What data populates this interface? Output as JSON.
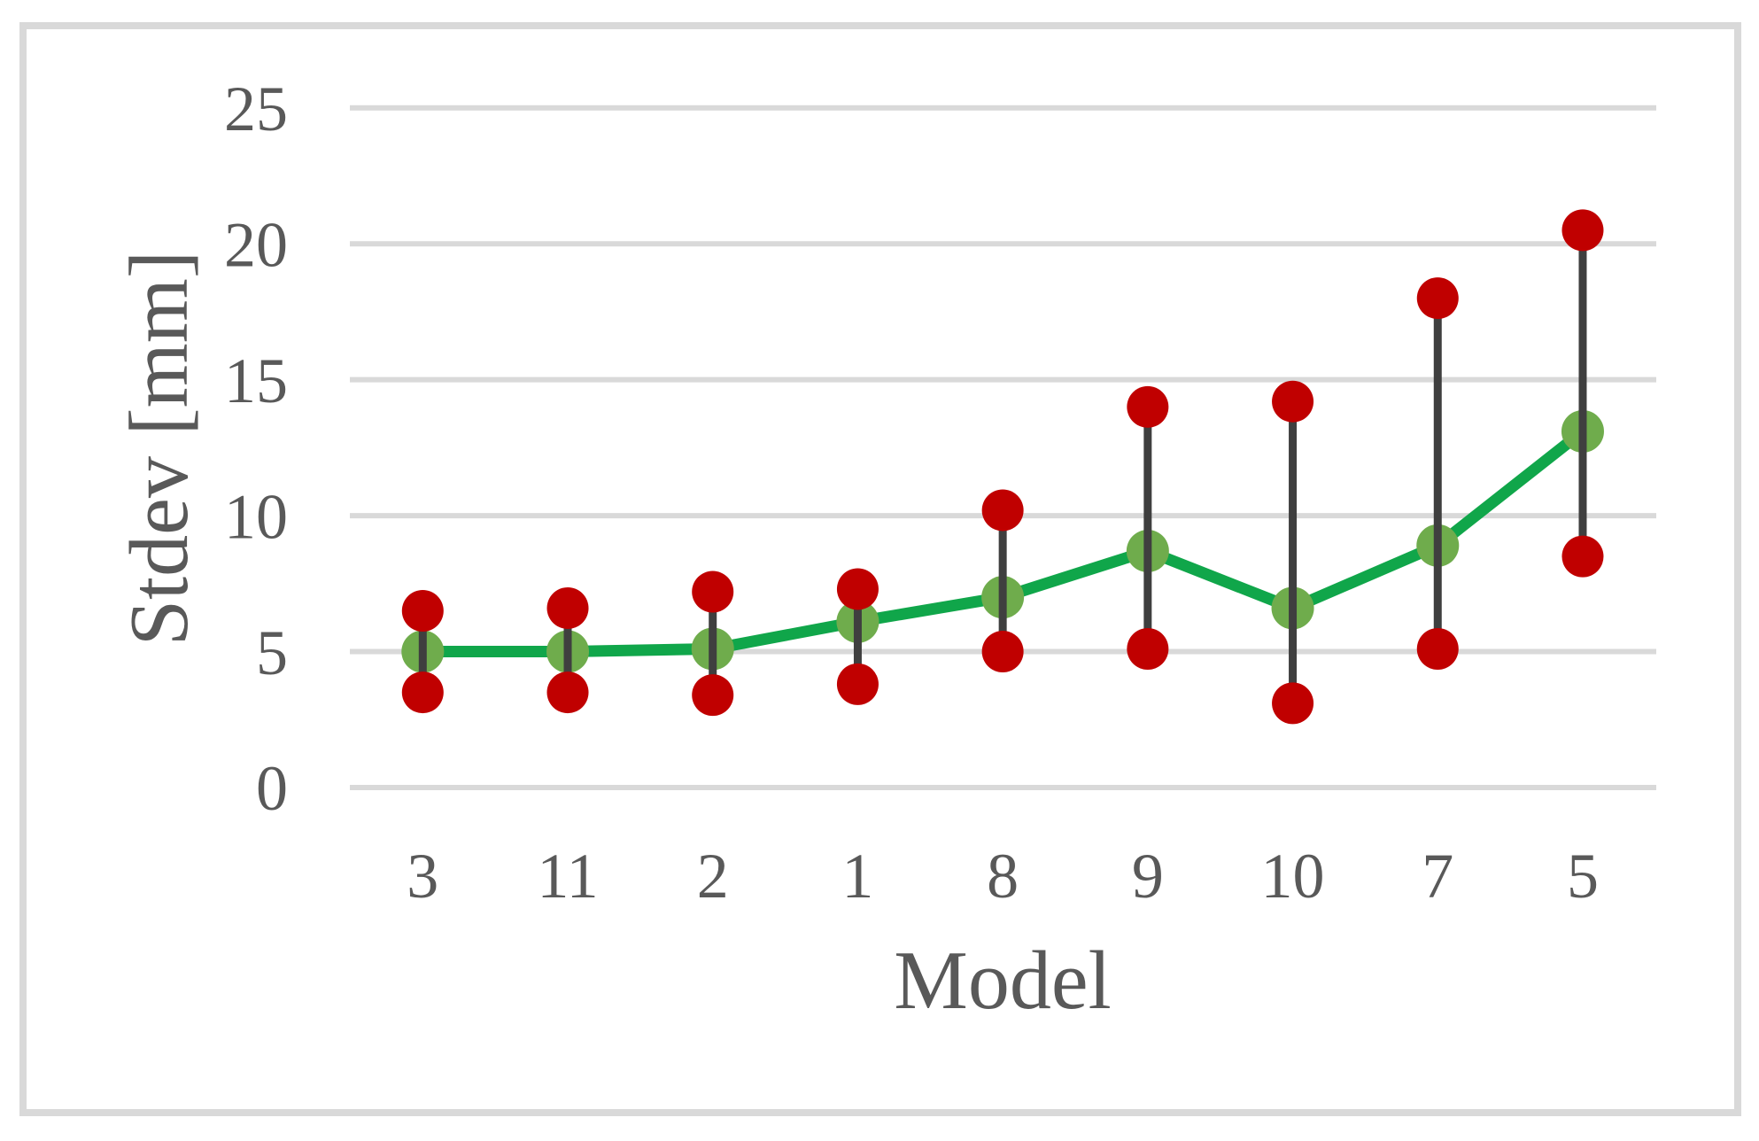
{
  "chart_data": {
    "type": "line",
    "subtype": "high-low-mean",
    "title": "",
    "xlabel": "Model",
    "ylabel": "Stdev [mm]",
    "categories": [
      "3",
      "11",
      "2",
      "1",
      "8",
      "9",
      "10",
      "7",
      "5"
    ],
    "series": [
      {
        "name": "high",
        "marker": "circle",
        "values": [
          6.5,
          6.6,
          7.2,
          7.3,
          10.2,
          14.0,
          14.2,
          18.0,
          20.5
        ]
      },
      {
        "name": "mean",
        "marker": "circle",
        "values": [
          5.0,
          5.0,
          5.1,
          6.1,
          7.0,
          8.7,
          6.6,
          8.9,
          13.1
        ]
      },
      {
        "name": "low",
        "marker": "circle",
        "values": [
          3.5,
          3.5,
          3.4,
          3.8,
          5.0,
          5.1,
          3.1,
          5.1,
          8.5
        ]
      }
    ],
    "y_ticks": [
      0,
      5,
      10,
      15,
      20,
      25
    ],
    "ylim": [
      0,
      25
    ],
    "grid": "horizontal",
    "legend": "none",
    "colors": {
      "high_low_marker": "#C00000",
      "mean_marker": "#6FAC4C",
      "mean_line": "#10A64A",
      "hilo_bar": "#3F3F3F",
      "gridline": "#D9D9D9",
      "frame_border": "#D9D9D9",
      "text": "#595959",
      "background": "#FFFFFF"
    }
  }
}
